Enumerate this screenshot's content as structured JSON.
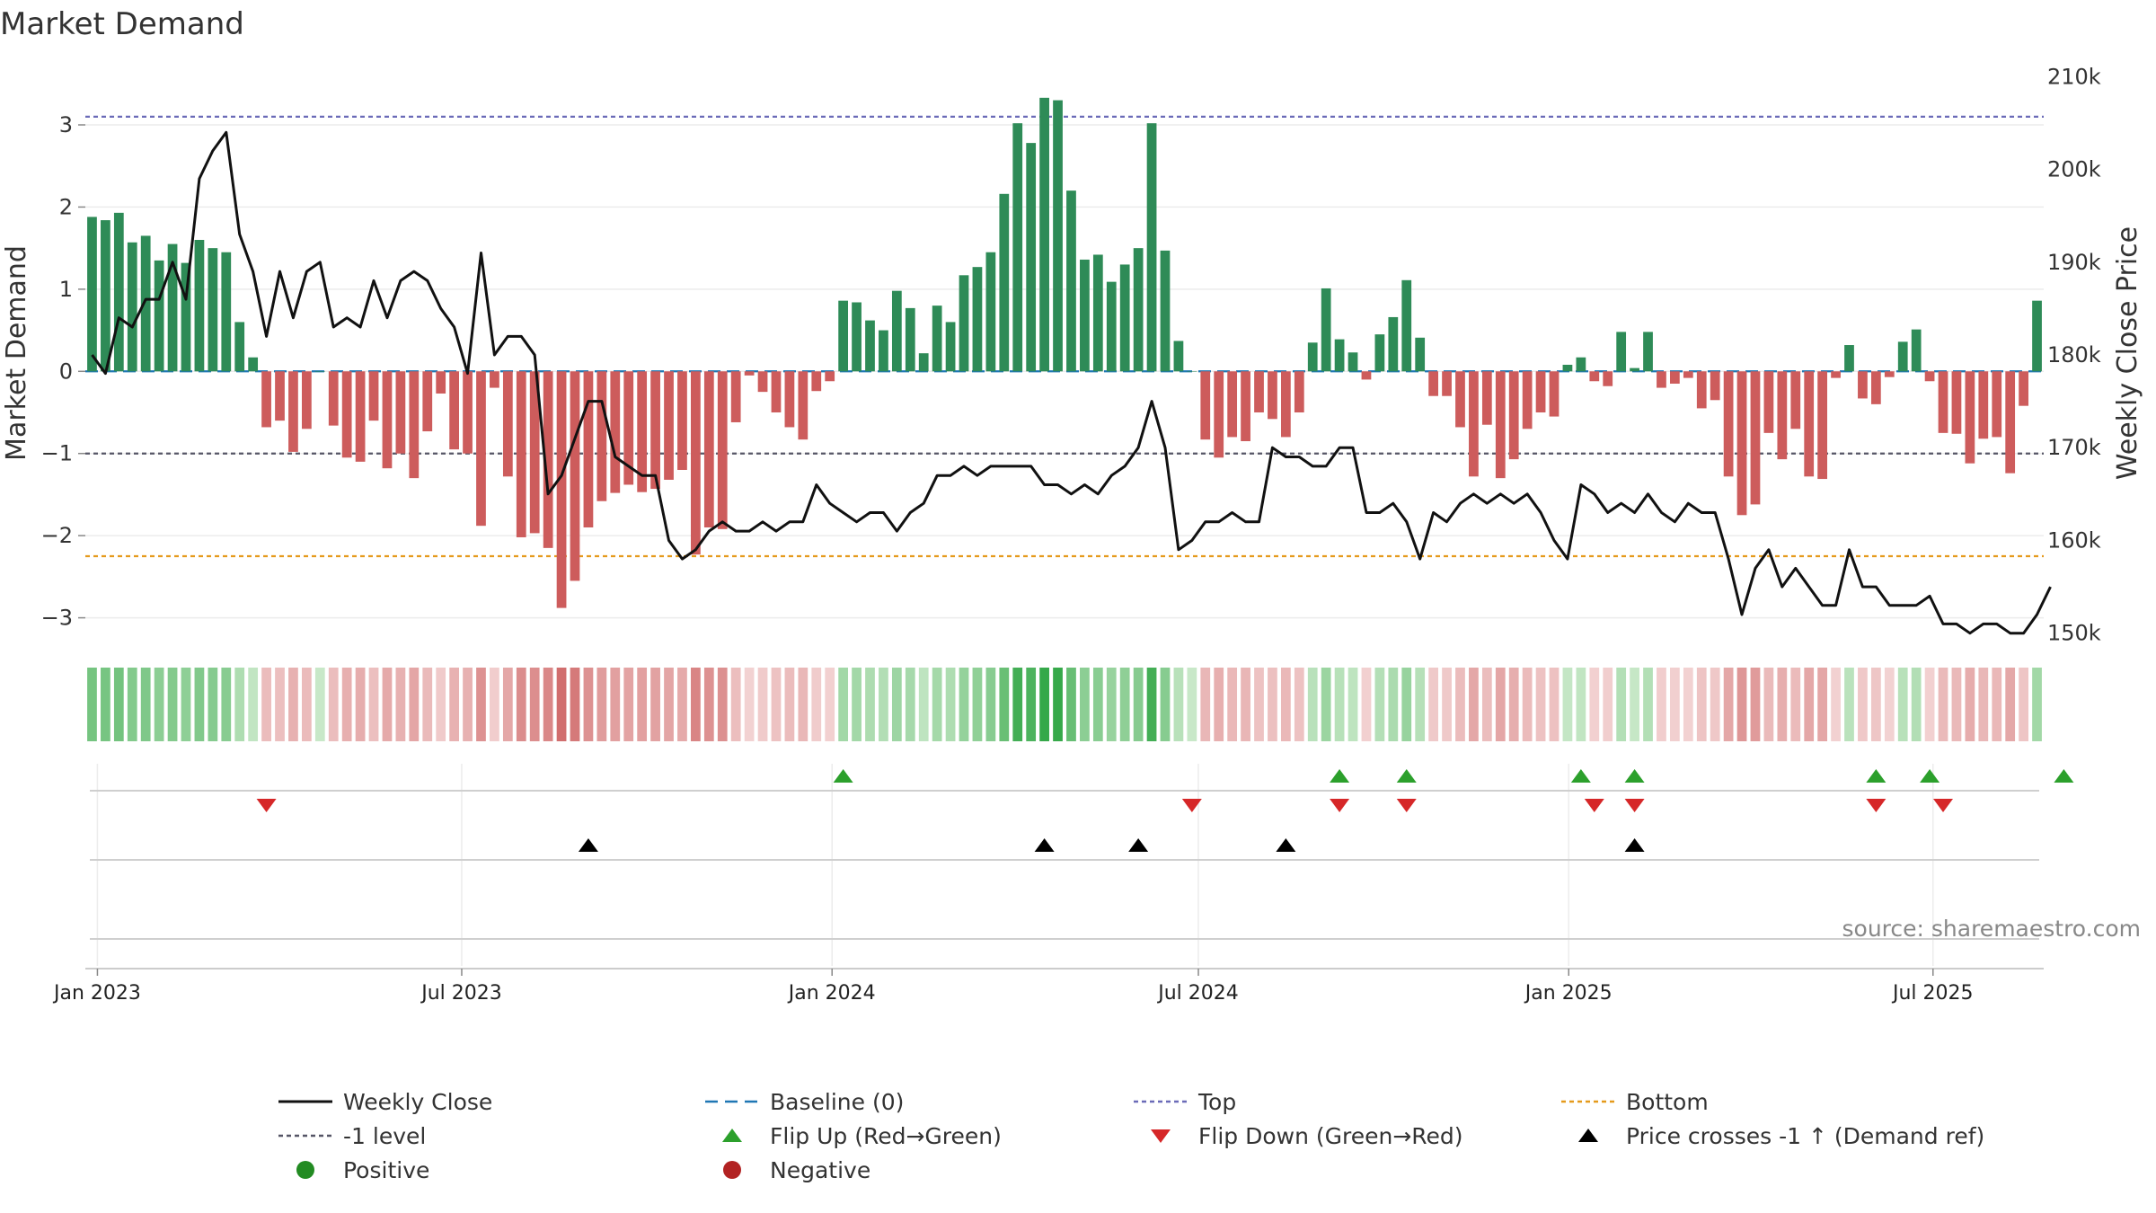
{
  "chart_data": {
    "type": "bar+line",
    "title": "Market Demand",
    "ylabel_left": "Market Demand",
    "ylabel_right": "Weekly Close Price",
    "left_ylim": [
      -3.3,
      3.7
    ],
    "left_ticks": [
      3,
      2,
      1,
      0,
      -1,
      -2,
      -3
    ],
    "left_tick_labels": [
      "3",
      "2",
      "1",
      "0",
      "−1",
      "−2",
      "−3"
    ],
    "right_ylim": [
      149,
      211
    ],
    "right_ticks": [
      210000,
      200000,
      190000,
      180000,
      170000,
      160000,
      150000
    ],
    "right_tick_labels": [
      "210k",
      "200k",
      "190k",
      "180k",
      "170k",
      "160k",
      "150k"
    ],
    "x_start": "2022-12-26",
    "x_end": "2025-08-25",
    "x_ticks": [
      "Jan 2023",
      "Jul 2023",
      "Jan 2024",
      "Jul 2024",
      "Jan 2025",
      "Jul 2025"
    ],
    "reference_lines": {
      "top": 3.1,
      "minus_one": -1.0,
      "bottom": -2.25,
      "baseline": 0
    },
    "demand": [
      1.88,
      1.84,
      1.93,
      1.57,
      1.65,
      1.35,
      1.55,
      1.32,
      1.6,
      1.5,
      1.45,
      0.6,
      0.17,
      -0.68,
      -0.6,
      -0.98,
      -0.7,
      0,
      -0.66,
      -1.05,
      -1.1,
      -0.6,
      -1.18,
      -1.0,
      -1.3,
      -0.73,
      -0.27,
      -0.95,
      -1.0,
      -1.88,
      -0.2,
      -1.28,
      -2.02,
      -1.97,
      -2.15,
      -2.88,
      -2.55,
      -1.9,
      -1.58,
      -1.48,
      -1.38,
      -1.47,
      -1.43,
      -1.32,
      -1.2,
      -2.23,
      -1.9,
      -1.92,
      -0.62,
      -0.05,
      -0.25,
      -0.5,
      -0.68,
      -0.83,
      -0.24,
      -0.12,
      0.86,
      0.84,
      0.62,
      0.5,
      0.98,
      0.77,
      0.22,
      0.8,
      0.6,
      1.17,
      1.27,
      1.45,
      2.16,
      3.02,
      2.78,
      3.33,
      3.3,
      2.2,
      1.36,
      1.42,
      1.09,
      1.3,
      1.5,
      3.02,
      1.47,
      0.37,
      0,
      -0.83,
      -1.05,
      -0.8,
      -0.85,
      -0.5,
      -0.58,
      -0.8,
      -0.5,
      0.35,
      1.01,
      0.39,
      0.23,
      -0.1,
      0.45,
      0.66,
      1.11,
      0.41,
      -0.3,
      -0.3,
      -0.68,
      -1.28,
      -0.65,
      -1.3,
      -1.07,
      -0.7,
      -0.5,
      -0.55,
      0.08,
      0.17,
      -0.12,
      -0.18,
      0.48,
      0.04,
      0.48,
      -0.2,
      -0.15,
      -0.08,
      -0.45,
      -0.35,
      -1.28,
      -1.75,
      -1.62,
      -0.75,
      -1.07,
      -0.7,
      -1.28,
      -1.31,
      -0.08,
      0.32,
      -0.33,
      -0.4,
      -0.07,
      0.36,
      0.51,
      -0.12,
      -0.75,
      -0.76,
      -1.12,
      -0.82,
      -0.8,
      -1.24,
      -0.42,
      0.86
    ],
    "weekly_close": [
      180,
      178,
      184,
      183,
      186,
      186,
      190,
      186,
      199,
      202,
      204,
      193,
      189,
      182,
      189,
      184,
      189,
      190,
      183,
      184,
      183,
      188,
      184,
      188,
      189,
      188,
      185,
      183,
      178,
      191,
      180,
      182,
      182,
      180,
      165,
      167,
      171,
      175,
      175,
      169,
      168,
      167,
      167,
      160,
      158,
      159,
      161,
      162,
      161,
      161,
      162,
      161,
      162,
      162,
      166,
      164,
      163,
      162,
      163,
      163,
      161,
      163,
      164,
      167,
      167,
      168,
      167,
      168,
      168,
      168,
      168,
      166,
      166,
      165,
      166,
      165,
      167,
      168,
      170,
      175,
      170,
      159,
      160,
      162,
      162,
      163,
      162,
      162,
      170,
      169,
      169,
      168,
      168,
      170,
      170,
      163,
      163,
      164,
      162,
      158,
      163,
      162,
      164,
      165,
      164,
      165,
      164,
      165,
      163,
      160,
      158,
      166,
      165,
      163,
      164,
      163,
      165,
      163,
      162,
      164,
      163,
      163,
      158,
      152,
      157,
      159,
      155,
      157,
      155,
      153,
      153,
      159,
      155,
      155,
      153,
      153,
      153,
      154,
      151,
      151,
      150,
      151,
      151,
      150,
      150,
      152,
      155
    ],
    "flip_up_weeks": [
      56,
      93,
      98,
      111,
      115,
      133,
      137,
      147
    ],
    "flip_down_weeks": [
      13,
      82,
      93,
      98,
      112,
      115,
      133,
      138
    ],
    "price_cross_weeks": [
      37,
      71,
      78,
      89,
      115
    ],
    "source_text": "source: sharemaestro.com",
    "legend": [
      "Weekly Close",
      "Baseline (0)",
      "Top",
      "Bottom",
      "-1 level",
      "Flip Up (Red→Green)",
      "Flip Down (Green→Red)",
      "Price crosses -1 ↑ (Demand ref)",
      "Positive",
      "Negative"
    ],
    "colors": {
      "positive": "#2e8b57",
      "negative": "#cd5c5c",
      "line": "#111111",
      "baseline": "#1f77b4",
      "top": "#6b6bb8",
      "minus_one": "#555566",
      "bottom": "#e59a1c",
      "flip_up": "#2ca02c",
      "flip_down": "#d62728",
      "cross": "#000000",
      "legend_positive": "#228b22",
      "legend_negative": "#b22222"
    }
  }
}
